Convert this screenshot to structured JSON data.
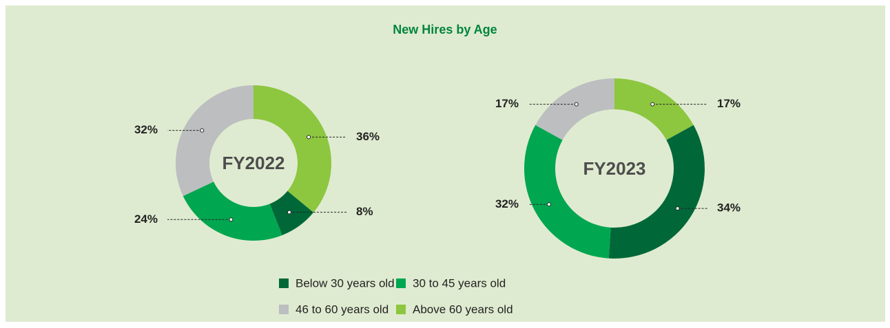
{
  "title": "New Hires by Age",
  "chart_data": [
    {
      "type": "pie",
      "title": "FY2022",
      "categories": [
        "Above 60 years old",
        "Below 30 years old",
        "30 to 45 years old",
        "46 to 60 years old"
      ],
      "values": [
        36,
        8,
        24,
        32
      ],
      "value_labels": [
        "36%",
        "8%",
        "24%",
        "32%"
      ],
      "colors": [
        "#8dc63f",
        "#006838",
        "#00a650",
        "#bcbec0"
      ]
    },
    {
      "type": "pie",
      "title": "FY2023",
      "categories": [
        "Above 60 years old",
        "Below 30 years old",
        "30 to 45 years old",
        "46 to 60 years old"
      ],
      "values": [
        17,
        34,
        32,
        17
      ],
      "value_labels": [
        "17%",
        "34%",
        "32%",
        "17%"
      ],
      "colors": [
        "#8dc63f",
        "#006838",
        "#00a650",
        "#bcbec0"
      ]
    }
  ]
}
